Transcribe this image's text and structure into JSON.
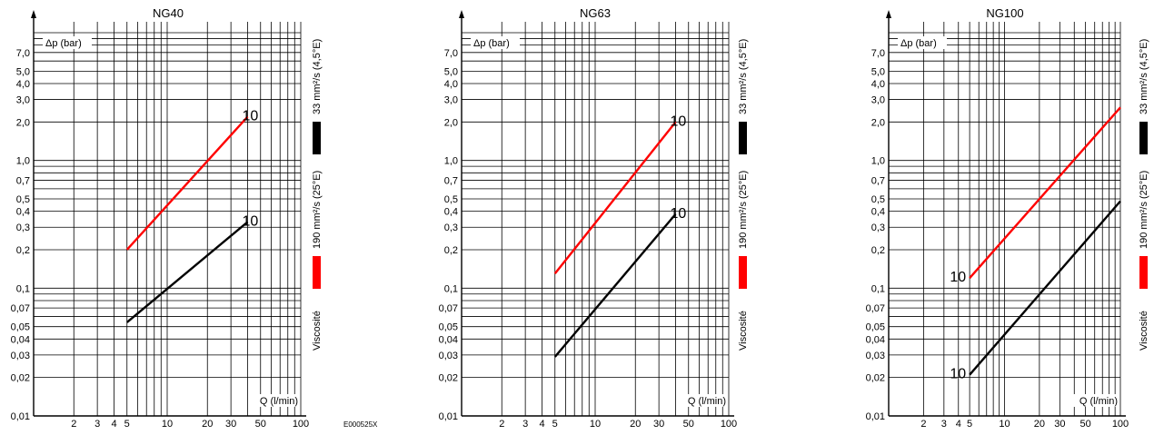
{
  "ref_code": "E000525X",
  "axis_labels": {
    "y": "Δp (bar)",
    "x": "Q (l/min)"
  },
  "y_tick_labels": [
    "0,01",
    "0,02",
    "0,03",
    "0,04",
    "0,05",
    "0,07",
    "0,1",
    "0,2",
    "0,3",
    "0,4",
    "0,5",
    "0,7",
    "1,0",
    "2,0",
    "3,0",
    "4,0",
    "5,0",
    "7,0"
  ],
  "x_tick_labels": [
    "2",
    "3",
    "4",
    "5",
    "10",
    "20",
    "30",
    "50",
    "100"
  ],
  "viscosity_legend": {
    "title": "Viscosité",
    "entries": [
      {
        "label": "190 mm²/s (25°E)",
        "color": "#ff0000"
      },
      {
        "label": "33 mm²/s (4,5°E)",
        "color": "#000000"
      }
    ]
  },
  "chart_data": [
    {
      "type": "line",
      "title": "NG40",
      "xlabel": "Q (l/min)",
      "ylabel": "Δp (bar)",
      "x_scale": "log",
      "y_scale": "log",
      "xlim": [
        1,
        100
      ],
      "ylim": [
        0.01,
        10
      ],
      "series": [
        {
          "name": "190 mm²/s (25°E)",
          "color": "#ff0000",
          "x": [
            5,
            40
          ],
          "y": [
            0.2,
            2.2
          ],
          "end_label": "10"
        },
        {
          "name": "33 mm²/s (4,5°E)",
          "color": "#000000",
          "x": [
            5,
            40
          ],
          "y": [
            0.054,
            0.33
          ],
          "end_label": "10"
        }
      ]
    },
    {
      "type": "line",
      "title": "NG63",
      "xlabel": "Q (l/min)",
      "ylabel": "Δp (bar)",
      "x_scale": "log",
      "y_scale": "log",
      "xlim": [
        1,
        100
      ],
      "ylim": [
        0.01,
        10
      ],
      "series": [
        {
          "name": "190 mm²/s (25°E)",
          "color": "#ff0000",
          "x": [
            5,
            40
          ],
          "y": [
            0.13,
            2.0
          ],
          "end_label": "10"
        },
        {
          "name": "33 mm²/s (4,5°E)",
          "color": "#000000",
          "x": [
            5,
            40
          ],
          "y": [
            0.029,
            0.38
          ],
          "end_label": "10"
        }
      ]
    },
    {
      "type": "line",
      "title": "NG100",
      "xlabel": "Q (l/min)",
      "ylabel": "Δp (bar)",
      "x_scale": "log",
      "y_scale": "log",
      "xlim": [
        1,
        100
      ],
      "ylim": [
        0.01,
        10
      ],
      "series": [
        {
          "name": "190 mm²/s (25°E)",
          "color": "#ff0000",
          "x": [
            5,
            100
          ],
          "y": [
            0.12,
            2.6
          ],
          "start_label": "10"
        },
        {
          "name": "33 mm²/s (4,5°E)",
          "color": "#000000",
          "x": [
            5,
            100
          ],
          "y": [
            0.021,
            0.48
          ],
          "start_label": "10"
        }
      ]
    }
  ]
}
